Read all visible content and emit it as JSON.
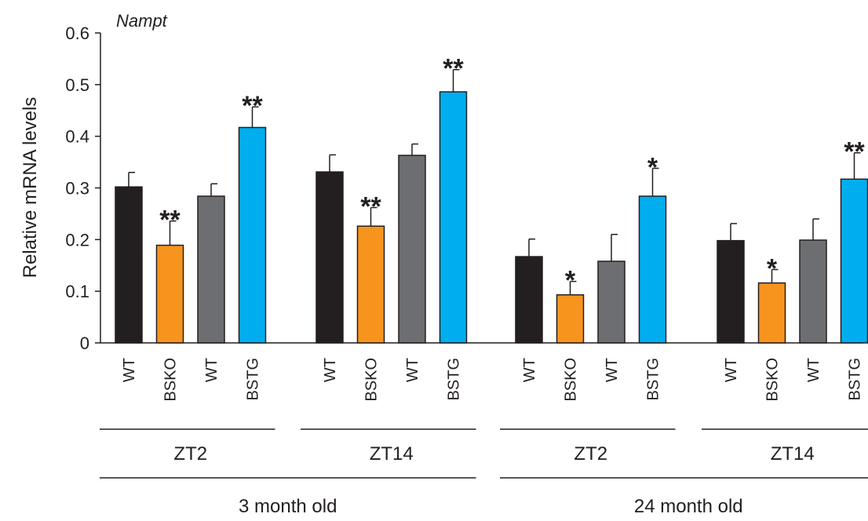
{
  "chart_data": {
    "type": "bar",
    "title": "Nampt",
    "ylabel": "Relative mRNA levels",
    "ylim": [
      0,
      0.6
    ],
    "yticks": [
      0,
      0.1,
      0.2,
      0.3,
      0.4,
      0.5,
      0.6
    ],
    "ytick_labels": [
      "0",
      "0.1",
      "0.2",
      "0.3",
      "0.4",
      "0.5",
      "0.6"
    ],
    "groups": [
      {
        "age": "3 month old",
        "subgroups": [
          {
            "label": "ZT2",
            "bars": [
              {
                "genotype": "WT",
                "value": 0.302,
                "error": 0.028,
                "color": "#231f20",
                "sig": ""
              },
              {
                "genotype": "BSKO",
                "value": 0.189,
                "error": 0.047,
                "color": "#f7941d",
                "sig": "**"
              },
              {
                "genotype": "WT",
                "value": 0.284,
                "error": 0.024,
                "color": "#6d6e71",
                "sig": ""
              },
              {
                "genotype": "BSTG",
                "value": 0.417,
                "error": 0.04,
                "color": "#00aeef",
                "sig": "**"
              }
            ]
          },
          {
            "label": "ZT14",
            "bars": [
              {
                "genotype": "WT",
                "value": 0.331,
                "error": 0.033,
                "color": "#231f20",
                "sig": ""
              },
              {
                "genotype": "BSKO",
                "value": 0.226,
                "error": 0.036,
                "color": "#f7941d",
                "sig": "**"
              },
              {
                "genotype": "WT",
                "value": 0.363,
                "error": 0.022,
                "color": "#6d6e71",
                "sig": ""
              },
              {
                "genotype": "BSTG",
                "value": 0.486,
                "error": 0.043,
                "color": "#00aeef",
                "sig": "**"
              }
            ]
          }
        ]
      },
      {
        "age": "24 month old",
        "subgroups": [
          {
            "label": "ZT2",
            "bars": [
              {
                "genotype": "WT",
                "value": 0.167,
                "error": 0.034,
                "color": "#231f20",
                "sig": ""
              },
              {
                "genotype": "BSKO",
                "value": 0.093,
                "error": 0.026,
                "color": "#f7941d",
                "sig": "*"
              },
              {
                "genotype": "WT",
                "value": 0.158,
                "error": 0.052,
                "color": "#6d6e71",
                "sig": ""
              },
              {
                "genotype": "BSTG",
                "value": 0.284,
                "error": 0.054,
                "color": "#00aeef",
                "sig": "*"
              }
            ]
          },
          {
            "label": "ZT14",
            "bars": [
              {
                "genotype": "WT",
                "value": 0.198,
                "error": 0.033,
                "color": "#231f20",
                "sig": ""
              },
              {
                "genotype": "BSKO",
                "value": 0.116,
                "error": 0.026,
                "color": "#f7941d",
                "sig": "*"
              },
              {
                "genotype": "WT",
                "value": 0.199,
                "error": 0.041,
                "color": "#6d6e71",
                "sig": ""
              },
              {
                "genotype": "BSTG",
                "value": 0.317,
                "error": 0.051,
                "color": "#00aeef",
                "sig": "**"
              }
            ]
          }
        ]
      }
    ],
    "legend": "none",
    "grid": false
  }
}
